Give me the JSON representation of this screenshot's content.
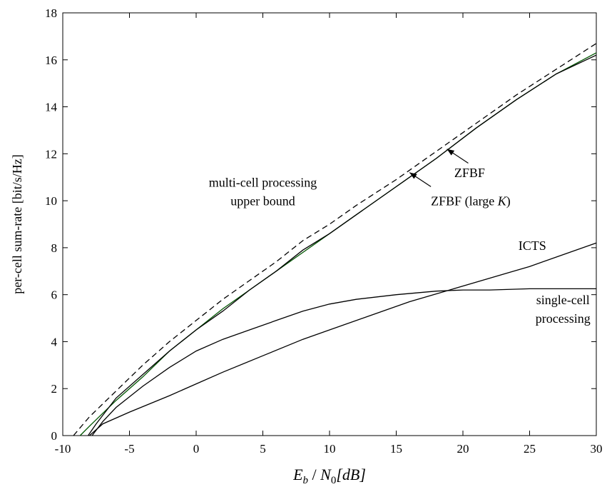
{
  "chart_data": {
    "type": "line",
    "xlabel_parts": {
      "E": "E",
      "b": "b",
      "sep": " / ",
      "N": "N",
      "zero": "0",
      "dB": "[dB]"
    },
    "ylabel": "per-cell sum-rate [bit/s/Hz]",
    "xlim": [
      -10,
      30
    ],
    "ylim": [
      0,
      18
    ],
    "xticks": [
      -10,
      -5,
      0,
      5,
      10,
      15,
      20,
      25,
      30
    ],
    "yticks": [
      0,
      2,
      4,
      6,
      8,
      10,
      12,
      14,
      16,
      18
    ],
    "grid": false,
    "series": [
      {
        "color": "#000000",
        "dash": "8,5",
        "x": [
          -9.2,
          -8,
          -6,
          -4,
          -2,
          0,
          2,
          4,
          6,
          8,
          10,
          12,
          15,
          18,
          21,
          24,
          27,
          30
        ],
        "y": [
          0,
          0.8,
          1.9,
          3.0,
          4.0,
          4.9,
          5.8,
          6.6,
          7.4,
          8.3,
          9.0,
          9.8,
          10.9,
          12.1,
          13.3,
          14.5,
          15.6,
          16.7
        ]
      },
      {
        "color": "#005500",
        "dash": "",
        "x": [
          -8.7,
          -8,
          -6,
          -4,
          -2,
          0,
          2,
          4,
          6,
          8,
          10,
          12,
          15,
          18,
          21,
          24,
          27,
          30
        ],
        "y": [
          0,
          0.4,
          1.5,
          2.5,
          3.6,
          4.5,
          5.4,
          6.2,
          7.0,
          7.8,
          8.6,
          9.4,
          10.6,
          11.8,
          13.1,
          14.3,
          15.4,
          16.3
        ]
      },
      {
        "color": "#000000",
        "dash": "",
        "x": [
          -8.1,
          -7.5,
          -6,
          -4,
          -2,
          0,
          2,
          4,
          6,
          8,
          10,
          12,
          15,
          18,
          21,
          24,
          27,
          30
        ],
        "y": [
          0,
          0.5,
          1.6,
          2.6,
          3.6,
          4.5,
          5.3,
          6.2,
          7.0,
          7.9,
          8.6,
          9.4,
          10.6,
          11.8,
          13.1,
          14.3,
          15.4,
          16.2
        ]
      },
      {
        "color": "#000000",
        "dash": "",
        "x": [
          -7.8,
          -7,
          -6,
          -4,
          -2,
          0,
          2,
          4,
          6,
          8,
          10,
          12,
          15,
          18,
          20,
          22,
          25,
          30
        ],
        "y": [
          0,
          0.6,
          1.2,
          2.1,
          2.9,
          3.6,
          4.1,
          4.5,
          4.9,
          5.3,
          5.6,
          5.8,
          6.0,
          6.15,
          6.2,
          6.2,
          6.25,
          6.25
        ]
      },
      {
        "color": "#000000",
        "dash": "",
        "x": [
          -8,
          -7,
          -5,
          -2,
          0,
          2,
          5,
          8,
          10,
          13,
          16,
          19,
          22,
          25,
          27,
          30
        ],
        "y": [
          0,
          0.5,
          1.0,
          1.7,
          2.2,
          2.7,
          3.4,
          4.1,
          4.5,
          5.1,
          5.7,
          6.2,
          6.7,
          7.2,
          7.6,
          8.2
        ]
      }
    ],
    "annotations": [
      {
        "lines": [
          "multi-cell processing",
          "upper bound"
        ],
        "x": 5,
        "y": 10.6,
        "anchor": "middle"
      },
      {
        "lines": [
          "ZFBF"
        ],
        "x": 20.5,
        "y": 11.0,
        "anchor": "middle"
      },
      {
        "lines": [
          "ZFBF (large "
        ],
        "italic_suffix": "K",
        "close": ")",
        "x": 17.6,
        "y": 9.8,
        "anchor": "start"
      },
      {
        "lines": [
          "ICTS"
        ],
        "x": 25.2,
        "y": 7.9,
        "anchor": "middle"
      },
      {
        "lines": [
          "single-cell",
          "processing"
        ],
        "x": 27.5,
        "y": 5.6,
        "anchor": "middle"
      }
    ],
    "arrows": [
      {
        "from": [
          20.4,
          11.6
        ],
        "to": [
          18.8,
          12.2
        ]
      },
      {
        "from": [
          17.6,
          10.6
        ],
        "to": [
          16.0,
          11.2
        ]
      }
    ]
  }
}
